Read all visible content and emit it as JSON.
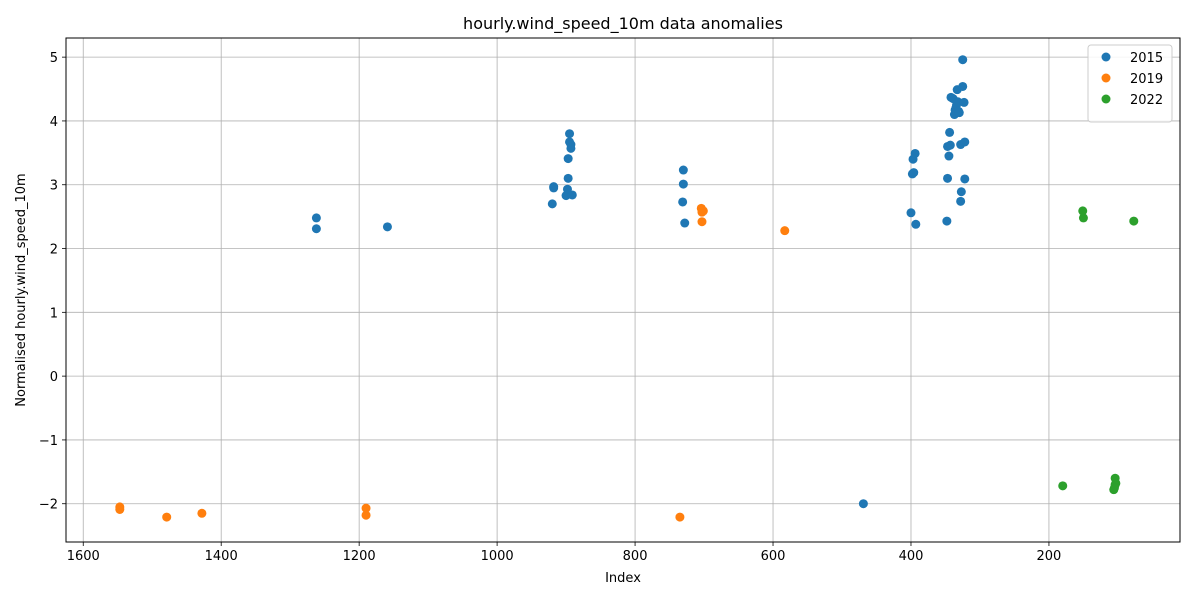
{
  "chart_data": {
    "type": "scatter",
    "title": "hourly.wind_speed_10m data anomalies",
    "xlabel": "Index",
    "ylabel": "Normalised hourly.wind_speed_10m",
    "x_inverted": true,
    "xlim": [
      1625,
      10
    ],
    "ylim": [
      -2.6,
      5.3
    ],
    "xticks": [
      1600,
      1400,
      1200,
      1000,
      800,
      600,
      400,
      200
    ],
    "xtick_labels": [
      "1600",
      "1400",
      "1200",
      "1000",
      "800",
      "600",
      "400",
      "200"
    ],
    "yticks": [
      -2,
      -1,
      0,
      1,
      2,
      3,
      4,
      5
    ],
    "ytick_labels": [
      "−2",
      "−1",
      "0",
      "1",
      "2",
      "3",
      "4",
      "5"
    ],
    "grid": true,
    "legend_position": "top-right",
    "series": [
      {
        "name": "2015",
        "color": "#1f77b4",
        "points": [
          [
            1262,
            2.48
          ],
          [
            1262,
            2.31
          ],
          [
            1159,
            2.34
          ],
          [
            920,
            2.7
          ],
          [
            918,
            2.97
          ],
          [
            918,
            2.95
          ],
          [
            900,
            2.83
          ],
          [
            898,
            2.93
          ],
          [
            897,
            3.1
          ],
          [
            897,
            3.41
          ],
          [
            895,
            3.8
          ],
          [
            895,
            3.67
          ],
          [
            893,
            3.63
          ],
          [
            893,
            3.57
          ],
          [
            891,
            2.84
          ],
          [
            730,
            3.23
          ],
          [
            730,
            3.01
          ],
          [
            731,
            2.73
          ],
          [
            728,
            2.4
          ],
          [
            469,
            -2.0
          ],
          [
            400,
            2.56
          ],
          [
            398,
            3.17
          ],
          [
            397,
            3.4
          ],
          [
            396,
            3.19
          ],
          [
            394,
            3.49
          ],
          [
            393,
            2.38
          ],
          [
            348,
            2.43
          ],
          [
            347,
            3.1
          ],
          [
            347,
            3.6
          ],
          [
            345,
            3.45
          ],
          [
            344,
            3.82
          ],
          [
            343,
            3.62
          ],
          [
            342,
            4.37
          ],
          [
            339,
            4.35
          ],
          [
            337,
            4.1
          ],
          [
            336,
            4.17
          ],
          [
            335,
            4.2
          ],
          [
            334,
            4.25
          ],
          [
            333,
            4.49
          ],
          [
            332,
            4.3
          ],
          [
            331,
            4.15
          ],
          [
            330,
            4.13
          ],
          [
            328,
            2.74
          ],
          [
            328,
            3.63
          ],
          [
            327,
            2.89
          ],
          [
            325,
            4.96
          ],
          [
            325,
            4.54
          ],
          [
            323,
            4.29
          ],
          [
            322,
            3.67
          ],
          [
            322,
            3.09
          ]
        ]
      },
      {
        "name": "2019",
        "color": "#ff7f0e",
        "points": [
          [
            1547,
            -2.05
          ],
          [
            1547,
            -2.09
          ],
          [
            1479,
            -2.21
          ],
          [
            1428,
            -2.15
          ],
          [
            1190,
            -2.07
          ],
          [
            1190,
            -2.18
          ],
          [
            735,
            -2.21
          ],
          [
            704,
            2.63
          ],
          [
            703,
            2.6
          ],
          [
            703,
            2.57
          ],
          [
            701,
            2.59
          ],
          [
            703,
            2.42
          ],
          [
            583,
            2.28
          ]
        ]
      },
      {
        "name": "2022",
        "color": "#2ca02c",
        "points": [
          [
            180,
            -1.72
          ],
          [
            151,
            2.59
          ],
          [
            150,
            2.48
          ],
          [
            104,
            -1.6
          ],
          [
            104,
            -1.7
          ],
          [
            103,
            -1.68
          ],
          [
            105,
            -1.75
          ],
          [
            106,
            -1.78
          ],
          [
            77,
            2.43
          ]
        ]
      }
    ]
  }
}
